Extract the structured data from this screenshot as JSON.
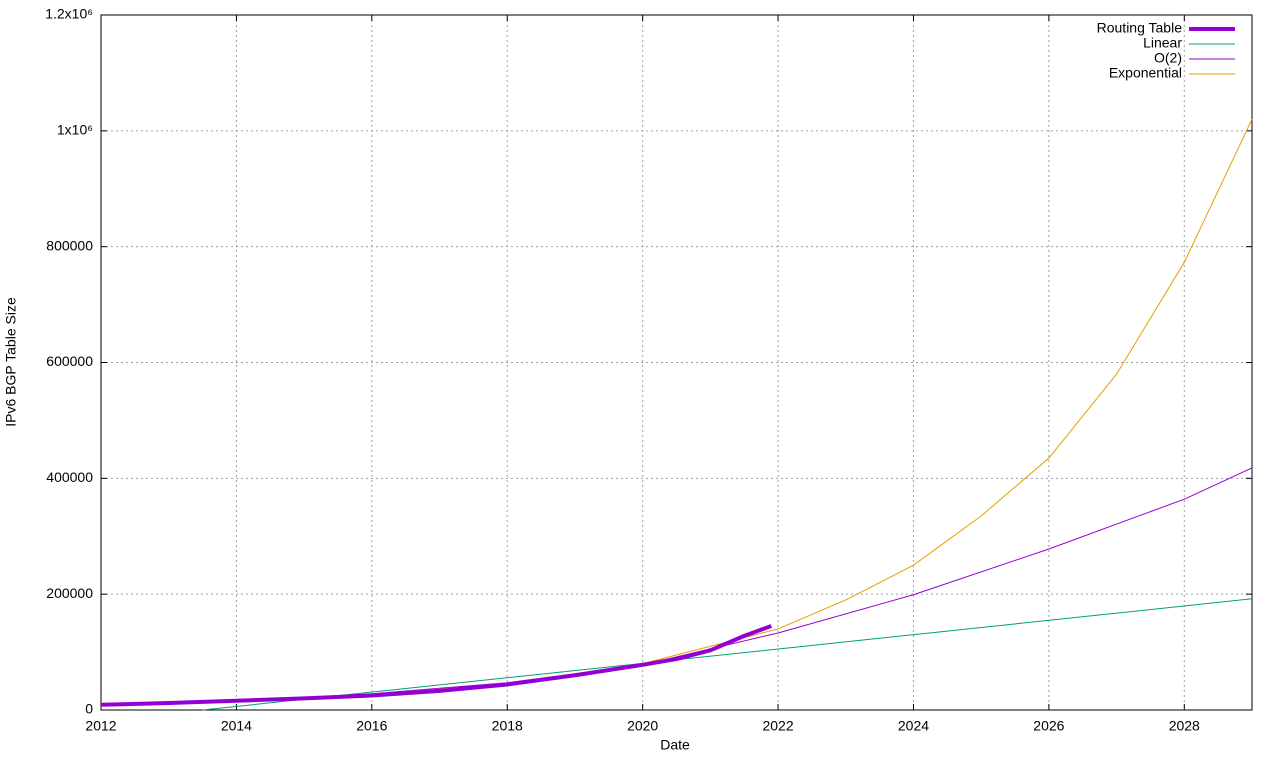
{
  "chart_data": {
    "type": "line",
    "x_label": "Date",
    "y_label": "IPv6 BGP Table Size",
    "xlim": [
      2012,
      2029
    ],
    "xticks": [
      2012,
      2014,
      2016,
      2018,
      2020,
      2022,
      2024,
      2026,
      2028
    ],
    "ylim": [
      0,
      1200000
    ],
    "yticks": [
      0,
      200000,
      400000,
      600000,
      800000,
      {
        "value": 1000000,
        "label": "1x10⁶"
      },
      {
        "value": 1200000,
        "label": "1.2x10⁶"
      }
    ],
    "grid": true,
    "legend": "top-right",
    "series": [
      {
        "name": "Routing Table",
        "color": "#9400d3",
        "width": 4,
        "x": [
          2012,
          2013,
          2014,
          2015,
          2016,
          2017,
          2018,
          2019,
          2020,
          2020.5,
          2021,
          2021.5,
          2021.9
        ],
        "values": [
          9000,
          12000,
          16000,
          20000,
          25000,
          33000,
          44000,
          60000,
          78000,
          88000,
          103000,
          128000,
          145000
        ]
      },
      {
        "name": "Linear",
        "color": "#009e73",
        "width": 1,
        "x": [
          2013.5,
          2029
        ],
        "values": [
          0,
          192000
        ]
      },
      {
        "name": "O(2)",
        "color": "#9400d3",
        "width": 1,
        "x": [
          2012,
          2014,
          2016,
          2018,
          2020,
          2022,
          2024,
          2026,
          2028,
          2029
        ],
        "values": [
          8000,
          15000,
          28000,
          47000,
          78000,
          133000,
          199000,
          278000,
          364000,
          418000
        ]
      },
      {
        "name": "Exponential",
        "color": "#e69f00",
        "width": 1,
        "x": [
          2012,
          2014,
          2016,
          2018,
          2020,
          2022,
          2023,
          2024,
          2025,
          2026,
          2027,
          2028,
          2029
        ],
        "values": [
          9000,
          15000,
          27000,
          45000,
          80000,
          140000,
          190000,
          250000,
          335000,
          435000,
          580000,
          773000,
          1020000
        ]
      }
    ]
  }
}
